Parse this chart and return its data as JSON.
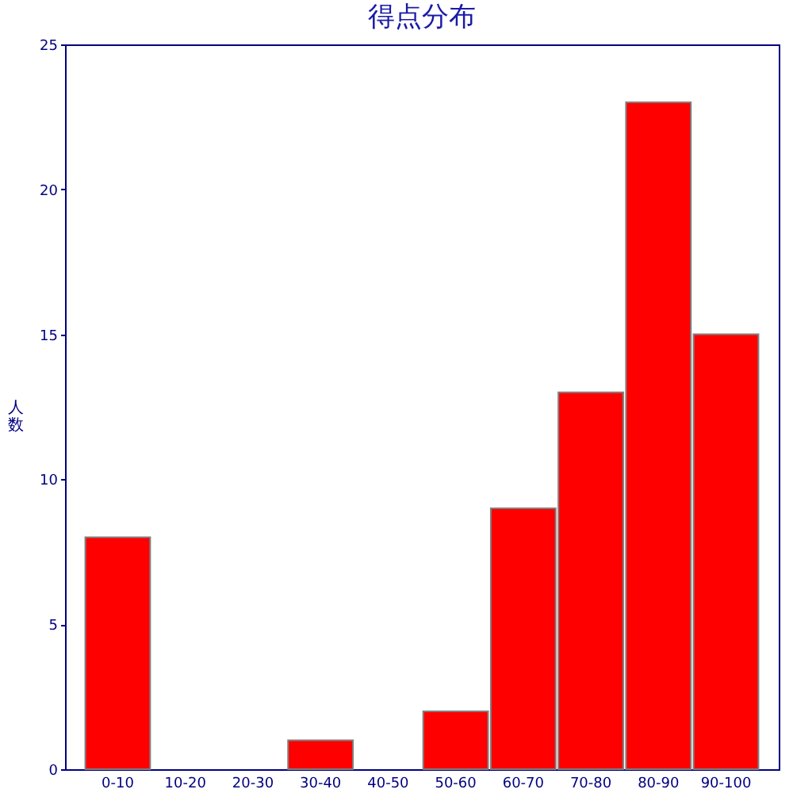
{
  "chart_data": {
    "type": "bar",
    "title": "得点分布",
    "ylabel": "人数",
    "categories": [
      "0-10",
      "10-20",
      "20-30",
      "30-40",
      "40-50",
      "50-60",
      "60-70",
      "70-80",
      "80-90",
      "90-100"
    ],
    "values": [
      8,
      0,
      0,
      1,
      0,
      2,
      9,
      13,
      23,
      15
    ],
    "color": "#ff0000",
    "ylim": [
      0,
      25
    ],
    "yticks": [
      0,
      5,
      10,
      15,
      20,
      25
    ],
    "grid": false,
    "legend": false
  }
}
